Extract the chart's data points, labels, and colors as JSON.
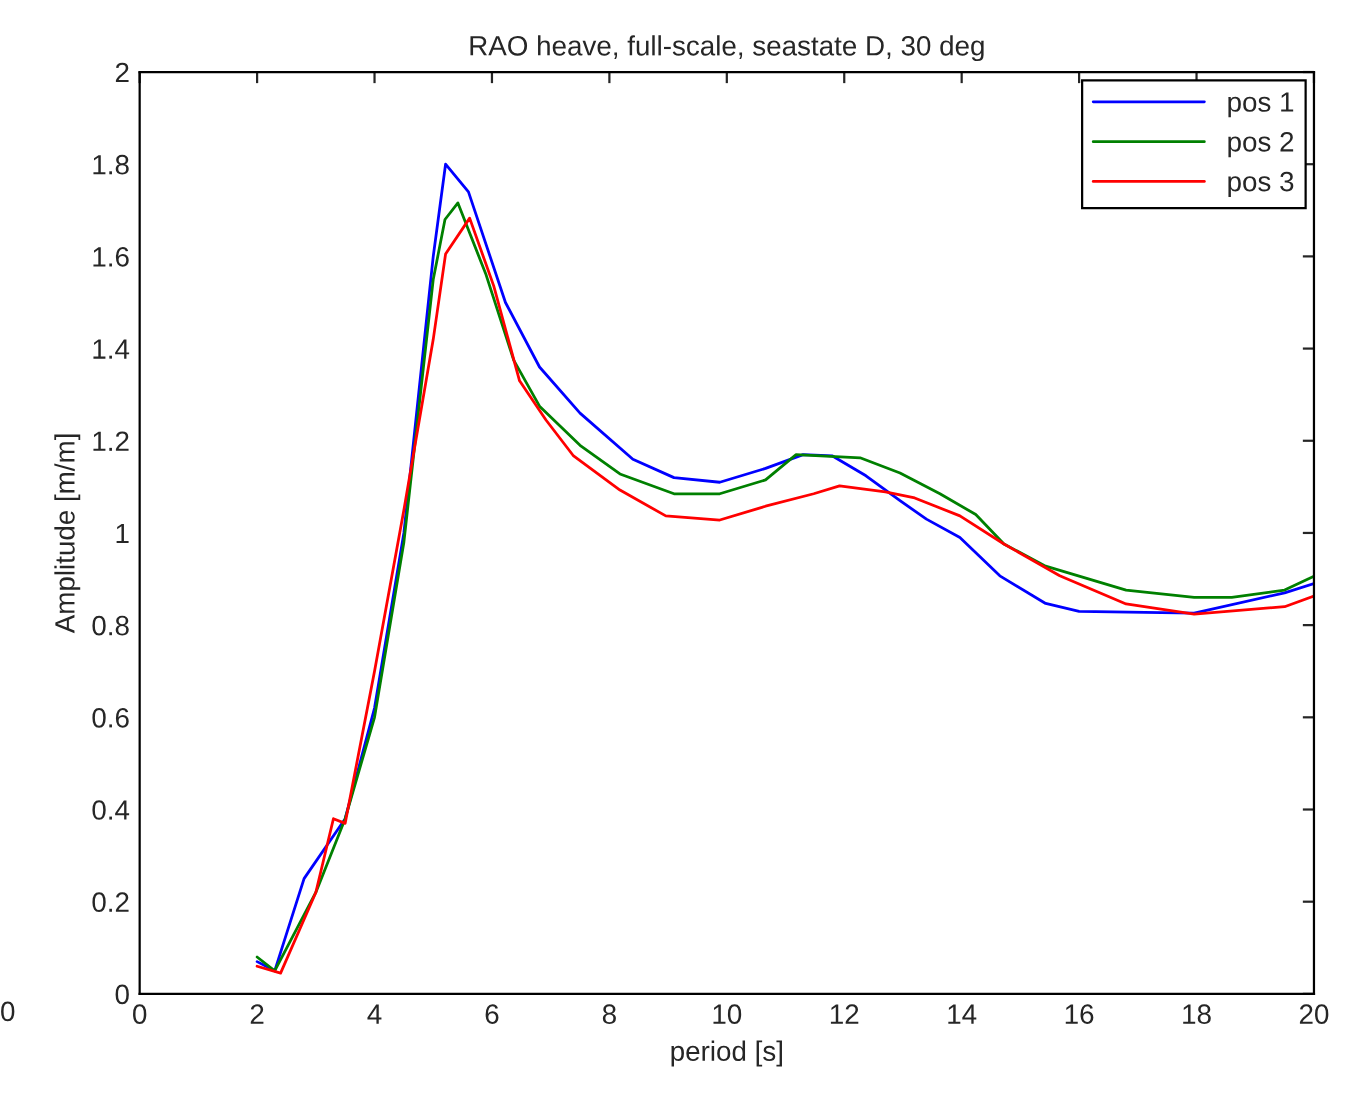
{
  "chart_data": {
    "type": "line",
    "title": "RAO heave, full-scale, seastate D, 30 deg",
    "xlabel": "period [s]",
    "ylabel": "Amplitude [m/m]",
    "xlim": [
      0,
      20
    ],
    "xticks": [
      0,
      2,
      4,
      6,
      8,
      10,
      12,
      14,
      16,
      18,
      20
    ],
    "ylim": [
      0,
      2
    ],
    "yticks": [
      0,
      0.2,
      0.4,
      0.6,
      0.8,
      1,
      1.2,
      1.4,
      1.6,
      1.8,
      2
    ],
    "grid": false,
    "legend": "top right",
    "annotations": [
      "0"
    ],
    "series": [
      {
        "name": "pos 1",
        "color": "#0000ff",
        "x": [
          2.0,
          2.3,
          2.8,
          3.5,
          4.0,
          4.5,
          5.0,
          5.21,
          5.6,
          6.23,
          6.81,
          7.5,
          8.4,
          9.1,
          9.88,
          10.66,
          11.3,
          11.8,
          12.37,
          12.95,
          13.4,
          13.97,
          14.65,
          15.43,
          16.0,
          17.96,
          19.5,
          20.0
        ],
        "values": [
          0.07,
          0.05,
          0.25,
          0.38,
          0.62,
          1.0,
          1.6,
          1.8,
          1.74,
          1.5,
          1.36,
          1.26,
          1.16,
          1.12,
          1.11,
          1.14,
          1.17,
          1.167,
          1.124,
          1.07,
          1.03,
          0.99,
          0.907,
          0.847,
          0.83,
          0.826,
          0.87,
          0.89
        ]
      },
      {
        "name": "pos 2",
        "color": "#008000",
        "x": [
          2.0,
          2.3,
          3.0,
          3.5,
          4.0,
          4.5,
          5.0,
          5.2,
          5.42,
          5.9,
          6.37,
          6.81,
          7.5,
          8.18,
          9.1,
          9.88,
          10.66,
          11.18,
          12.27,
          12.95,
          13.63,
          14.24,
          14.72,
          15.43,
          16.8,
          17.96,
          18.6,
          19.5,
          20.0
        ],
        "values": [
          0.08,
          0.05,
          0.22,
          0.38,
          0.6,
          0.98,
          1.55,
          1.68,
          1.716,
          1.56,
          1.375,
          1.275,
          1.19,
          1.128,
          1.085,
          1.085,
          1.115,
          1.17,
          1.163,
          1.13,
          1.085,
          1.04,
          0.976,
          0.928,
          0.876,
          0.86,
          0.86,
          0.876,
          0.906
        ]
      },
      {
        "name": "pos 3",
        "color": "#ff0000",
        "x": [
          2.0,
          2.4,
          3.0,
          3.3,
          3.5,
          4.0,
          4.5,
          5.0,
          5.21,
          5.62,
          6.03,
          6.47,
          6.92,
          7.39,
          8.18,
          8.96,
          9.88,
          10.66,
          11.48,
          11.92,
          12.7,
          13.2,
          13.97,
          14.72,
          15.67,
          16.8,
          17.96,
          19.5,
          20.0
        ],
        "values": [
          0.06,
          0.045,
          0.22,
          0.38,
          0.37,
          0.7,
          1.05,
          1.42,
          1.605,
          1.683,
          1.536,
          1.33,
          1.245,
          1.167,
          1.093,
          1.037,
          1.028,
          1.058,
          1.085,
          1.102,
          1.089,
          1.076,
          1.037,
          0.976,
          0.907,
          0.846,
          0.824,
          0.84,
          0.863
        ]
      }
    ]
  }
}
